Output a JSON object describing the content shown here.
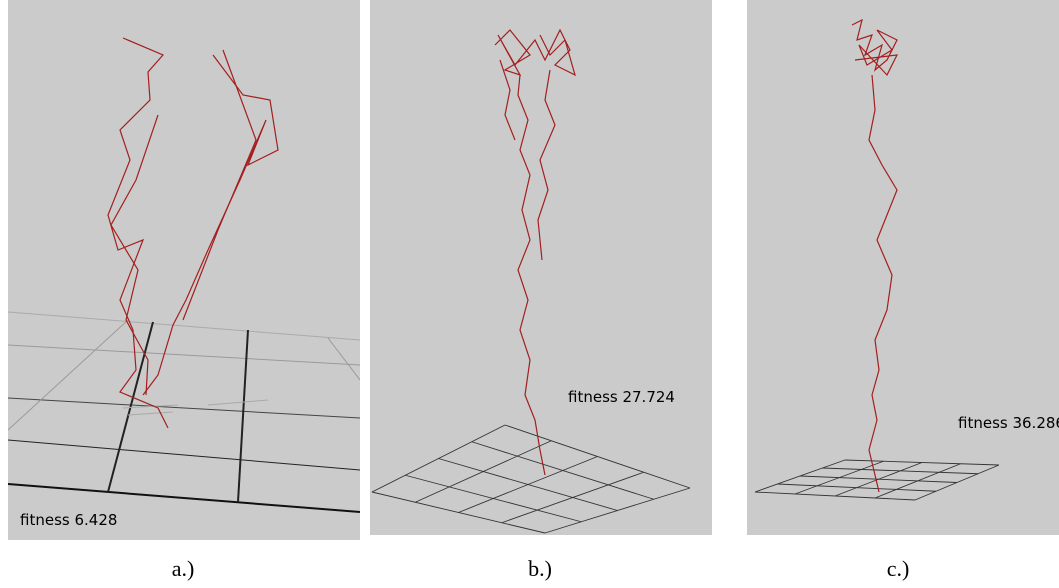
{
  "panels": [
    {
      "fitness": "fitness 6.428",
      "caption": "a.)"
    },
    {
      "fitness": "fitness 27.724",
      "caption": "b.)"
    },
    {
      "fitness": "fitness 36.286",
      "caption": "c.)"
    }
  ]
}
